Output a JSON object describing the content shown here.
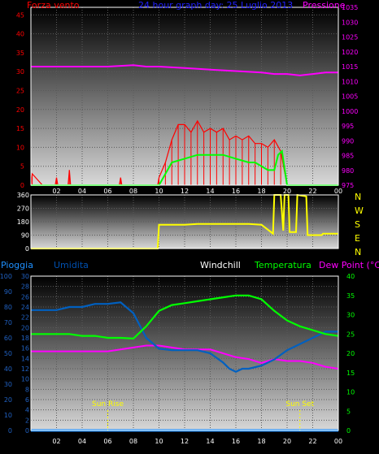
{
  "panel1": {
    "title_left": "Forza vento",
    "title_center": "24 hour graph day: 25 Luglio 2013",
    "title_right": "Pressione",
    "y_left_ticks": [
      0,
      5,
      10,
      15,
      20,
      25,
      30,
      35,
      40,
      45
    ],
    "y_right_ticks": [
      975,
      980,
      985,
      990,
      995,
      1000,
      1005,
      1010,
      1015,
      1020,
      1025,
      1030,
      1035
    ],
    "x_ticks": [
      "02",
      "04",
      "06",
      "08",
      "10",
      "12",
      "14",
      "16",
      "18",
      "20",
      "22",
      "00"
    ]
  },
  "panel2": {
    "y_left_ticks": [
      0,
      90,
      180,
      270,
      360
    ],
    "compass": [
      "N",
      "W",
      "S",
      "E",
      "N"
    ],
    "x_ticks": [
      "02",
      "04",
      "06",
      "08",
      "10",
      "12",
      "14",
      "16",
      "18",
      "20",
      "22",
      "00"
    ]
  },
  "panel3": {
    "label_pioggia": "Pioggia",
    "label_umidita": "Umidita",
    "label_windchill": "Windchill",
    "label_temperatura": "Temperatura",
    "label_dewpoint": "Dew Point (°C)",
    "label_sunrise": "Sun Rise",
    "label_sunset": "Sun Set",
    "y_hum_ticks": [
      0,
      10,
      20,
      30,
      40,
      50,
      60,
      70,
      80,
      90,
      100
    ],
    "y_rain_ticks": [
      0,
      2,
      4,
      6,
      8,
      10,
      12,
      14,
      16,
      18,
      20,
      22,
      24,
      26,
      28,
      30
    ],
    "y_right_ticks": [
      0,
      5,
      10,
      15,
      20,
      25,
      30,
      35,
      40
    ],
    "x_ticks": [
      "02",
      "04",
      "06",
      "08",
      "10",
      "12",
      "14",
      "16",
      "18",
      "20",
      "22",
      "00"
    ]
  },
  "colors": {
    "wind": "#ff0000",
    "gust": "#00ff00",
    "pressure": "#ff00ff",
    "direction": "#ffff00",
    "humidity": "#0060c0",
    "temperature": "#00ff00",
    "dewpoint": "#ff00ff",
    "rain": "#0080ff",
    "compass": "#ffff00"
  },
  "chart_data": [
    {
      "type": "line",
      "title": "24 hour graph day: 25 Luglio 2013",
      "xlabel": "",
      "ylabel": "Forza vento",
      "ylabel_right": "Pressione",
      "xlim": [
        0,
        24
      ],
      "ylim": [
        0,
        47
      ],
      "ylim_right": [
        975,
        1035
      ],
      "series": [
        {
          "name": "Pressione",
          "axis": "right",
          "x": [
            0,
            2,
            4,
            6,
            8,
            9,
            10,
            12,
            14,
            16,
            18,
            19,
            20,
            21,
            22,
            23,
            24
          ],
          "values": [
            1015,
            1015,
            1015,
            1015,
            1015.5,
            1015,
            1015,
            1014.5,
            1014,
            1013.5,
            1013,
            1012.5,
            1012.5,
            1012,
            1012.5,
            1013,
            1013
          ]
        },
        {
          "name": "Forza vento",
          "x": [
            0,
            0.1,
            0.9,
            1,
            1.1,
            1.9,
            2,
            2.1,
            2.9,
            3,
            3.1,
            6.9,
            7,
            7.1,
            9.9,
            10,
            10.5,
            11,
            11.5,
            12,
            12.5,
            13,
            13.5,
            14,
            14.5,
            15,
            15.5,
            16,
            16.5,
            17,
            17.5,
            18,
            18.5,
            19,
            19.5,
            20,
            24
          ],
          "values": [
            0,
            3,
            0,
            0,
            0,
            0,
            2,
            0,
            0,
            4,
            0,
            0,
            2,
            0,
            0,
            2,
            6,
            12,
            16,
            16,
            14,
            17,
            14,
            15,
            14,
            15,
            12,
            13,
            12,
            13,
            11,
            11,
            10,
            12,
            9,
            0,
            0
          ]
        },
        {
          "name": "Raffica",
          "x": [
            0,
            10,
            10.5,
            11,
            12,
            13,
            14,
            15,
            16,
            17,
            17.5,
            18,
            18.5,
            19,
            19.3,
            19.6,
            20,
            24
          ],
          "values": [
            0,
            0,
            3,
            6,
            7,
            8,
            8,
            8,
            7,
            6,
            6,
            5,
            4,
            4,
            8,
            9,
            0,
            0
          ]
        }
      ]
    },
    {
      "type": "line",
      "xlabel": "",
      "ylabel": "",
      "xlim": [
        0,
        24
      ],
      "ylim": [
        0,
        360
      ],
      "series": [
        {
          "name": "Direzione",
          "x": [
            0,
            9.9,
            10,
            11,
            12,
            13,
            14,
            15,
            16,
            17,
            18,
            18.9,
            19,
            19.1,
            19.5,
            19.7,
            19.8,
            20.1,
            20.2,
            20.7,
            20.8,
            21.5,
            21.6,
            22.7,
            22.8,
            24
          ],
          "values": [
            0,
            0,
            160,
            160,
            160,
            165,
            165,
            165,
            165,
            165,
            160,
            100,
            360,
            360,
            360,
            120,
            360,
            360,
            110,
            110,
            360,
            350,
            90,
            90,
            100,
            100
          ]
        }
      ]
    },
    {
      "type": "line",
      "xlabel": "",
      "ylabel": "Umidita",
      "ylabel_right": "Temperatura",
      "xlim": [
        0,
        24
      ],
      "ylim": [
        0,
        100
      ],
      "ylim_right": [
        0,
        40
      ],
      "series": [
        {
          "name": "Umidita",
          "axis": "left",
          "x": [
            0,
            1,
            2,
            3,
            4,
            5,
            6,
            7,
            8,
            9,
            10,
            11,
            12,
            13,
            14,
            15,
            15.5,
            16,
            16.5,
            17,
            18,
            19,
            20,
            21,
            22,
            23,
            24
          ],
          "values": [
            78,
            78,
            78,
            80,
            80,
            82,
            82,
            83,
            76,
            60,
            53,
            52,
            52,
            52,
            50,
            44,
            40,
            38,
            40,
            40,
            42,
            46,
            52,
            56,
            60,
            64,
            64
          ]
        },
        {
          "name": "Temperatura",
          "axis": "right",
          "x": [
            0,
            1,
            2,
            3,
            4,
            5,
            6,
            7,
            8,
            9,
            10,
            11,
            12,
            13,
            14,
            15,
            16,
            17,
            18,
            19,
            20,
            21,
            22,
            23,
            24
          ],
          "values": [
            25,
            25,
            25,
            25,
            24.5,
            24.5,
            24,
            24,
            23.8,
            27,
            31,
            32.5,
            33,
            33.5,
            34,
            34.5,
            35,
            35,
            34,
            31,
            28.5,
            27,
            26,
            25,
            24.5
          ]
        },
        {
          "name": "Dew Point (°C)",
          "axis": "right",
          "x": [
            0,
            2,
            4,
            6,
            8,
            9,
            10,
            11,
            12,
            13,
            14,
            15,
            16,
            17,
            18,
            19,
            20,
            21,
            22,
            23,
            24
          ],
          "values": [
            20.5,
            20.5,
            20.5,
            20.5,
            21.5,
            22,
            22,
            21.5,
            21,
            21,
            21,
            20,
            19,
            18.5,
            17.5,
            18.5,
            18,
            18,
            17.5,
            16.5,
            16
          ]
        },
        {
          "name": "Pioggia",
          "axis": "rain",
          "x": [
            0,
            24
          ],
          "values": [
            0,
            0
          ]
        }
      ],
      "annotations": [
        "Sun Rise",
        "Sun Set"
      ],
      "annotation_x": [
        6,
        21
      ]
    }
  ]
}
